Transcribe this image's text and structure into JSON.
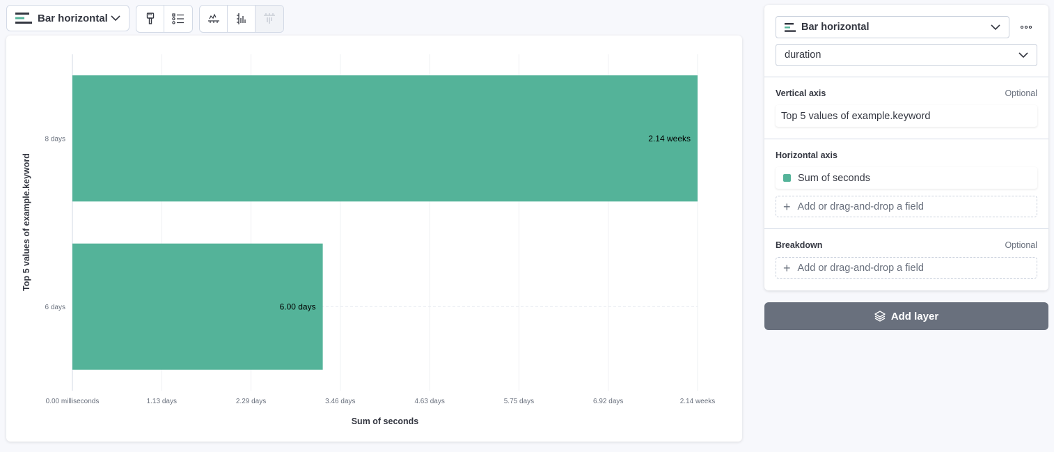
{
  "toolbar": {
    "chart_type_label": "Bar horizontal",
    "buttons": [
      "paintbrush-icon",
      "list-icon",
      "axis-bottom-icon",
      "axis-left-icon",
      "axis-right-icon"
    ]
  },
  "chart_data": {
    "type": "bar",
    "orientation": "horizontal",
    "categories": [
      "8 days",
      "6 days"
    ],
    "values": [
      2.14,
      0.857
    ],
    "value_unit": "weeks",
    "data_labels": [
      "2.14 weeks",
      "6.00 days"
    ],
    "x_ticks": [
      "0.00 milliseconds",
      "1.13 days",
      "2.29 days",
      "3.46 days",
      "4.63 days",
      "5.75 days",
      "6.92 days",
      "2.14 weeks"
    ],
    "xlabel": "Sum of seconds",
    "ylabel": "Top 5 values of example.keyword",
    "xlim": [
      0,
      2.14
    ],
    "grid": true,
    "color": "#54b399"
  },
  "config": {
    "layer_type": "Bar horizontal",
    "data_view": "duration",
    "sections": {
      "vertical": {
        "title": "Vertical axis",
        "optional": "Optional",
        "dimension": "Top 5 values of example.keyword"
      },
      "horizontal": {
        "title": "Horizontal axis",
        "dimension": "Sum of seconds",
        "add": "Add or drag-and-drop a field"
      },
      "breakdown": {
        "title": "Breakdown",
        "optional": "Optional",
        "add": "Add or drag-and-drop a field"
      }
    },
    "add_layer": "Add layer"
  }
}
